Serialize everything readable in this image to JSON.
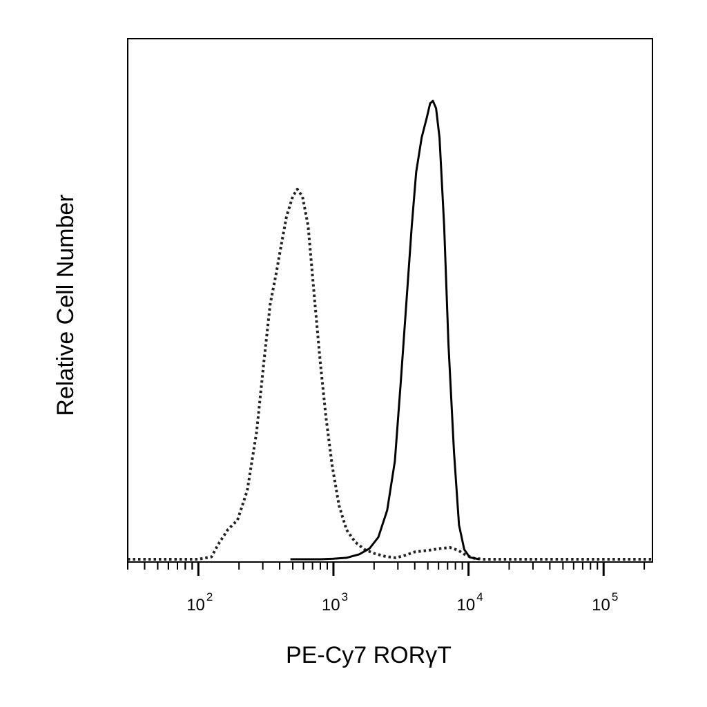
{
  "chart_data": {
    "type": "line",
    "title": "",
    "xlabel": "PE-Cy7 RORγT",
    "ylabel": "Relative Cell Number",
    "x_scale": "log",
    "xlim": [
      30,
      230000
    ],
    "ylim": [
      0,
      1
    ],
    "grid": false,
    "legend": "none",
    "x_ticks": [
      {
        "base": "10",
        "exp": "2",
        "value": 100
      },
      {
        "base": "10",
        "exp": "3",
        "value": 1000
      },
      {
        "base": "10",
        "exp": "4",
        "value": 10000
      },
      {
        "base": "10",
        "exp": "5",
        "value": 100000
      }
    ],
    "series": [
      {
        "style": "dotted",
        "color": "#222222",
        "points": [
          [
            30,
            0
          ],
          [
            70,
            0
          ],
          [
            100,
            0
          ],
          [
            125,
            0.005
          ],
          [
            140,
            0.03
          ],
          [
            165,
            0.06
          ],
          [
            195,
            0.08
          ],
          [
            230,
            0.14
          ],
          [
            270,
            0.26
          ],
          [
            305,
            0.4
          ],
          [
            340,
            0.52
          ],
          [
            375,
            0.58
          ],
          [
            410,
            0.64
          ],
          [
            450,
            0.7
          ],
          [
            500,
            0.74
          ],
          [
            540,
            0.755
          ],
          [
            590,
            0.74
          ],
          [
            650,
            0.68
          ],
          [
            720,
            0.54
          ],
          [
            800,
            0.4
          ],
          [
            880,
            0.29
          ],
          [
            980,
            0.19
          ],
          [
            1100,
            0.11
          ],
          [
            1250,
            0.06
          ],
          [
            1450,
            0.035
          ],
          [
            1700,
            0.02
          ],
          [
            2000,
            0.012
          ],
          [
            2400,
            0.006
          ],
          [
            2900,
            0.003
          ],
          [
            3400,
            0.008
          ],
          [
            4000,
            0.015
          ],
          [
            5000,
            0.018
          ],
          [
            6200,
            0.022
          ],
          [
            7300,
            0.024
          ],
          [
            8400,
            0.018
          ],
          [
            9600,
            0.008
          ],
          [
            11000,
            0.002
          ],
          [
            13000,
            0
          ],
          [
            50000,
            0
          ],
          [
            230000,
            0
          ]
        ]
      },
      {
        "style": "solid",
        "color": "#000000",
        "points": [
          [
            480,
            0
          ],
          [
            800,
            0
          ],
          [
            1000,
            0.001
          ],
          [
            1250,
            0.003
          ],
          [
            1550,
            0.01
          ],
          [
            1850,
            0.022
          ],
          [
            2150,
            0.045
          ],
          [
            2500,
            0.1
          ],
          [
            2850,
            0.2
          ],
          [
            3150,
            0.36
          ],
          [
            3500,
            0.54
          ],
          [
            3800,
            0.68
          ],
          [
            4100,
            0.79
          ],
          [
            4500,
            0.86
          ],
          [
            4900,
            0.9
          ],
          [
            5200,
            0.93
          ],
          [
            5450,
            0.935
          ],
          [
            5750,
            0.92
          ],
          [
            6100,
            0.86
          ],
          [
            6600,
            0.68
          ],
          [
            7100,
            0.44
          ],
          [
            7800,
            0.22
          ],
          [
            8500,
            0.07
          ],
          [
            9300,
            0.02
          ],
          [
            10200,
            0.004
          ],
          [
            12000,
            0
          ]
        ]
      }
    ]
  }
}
